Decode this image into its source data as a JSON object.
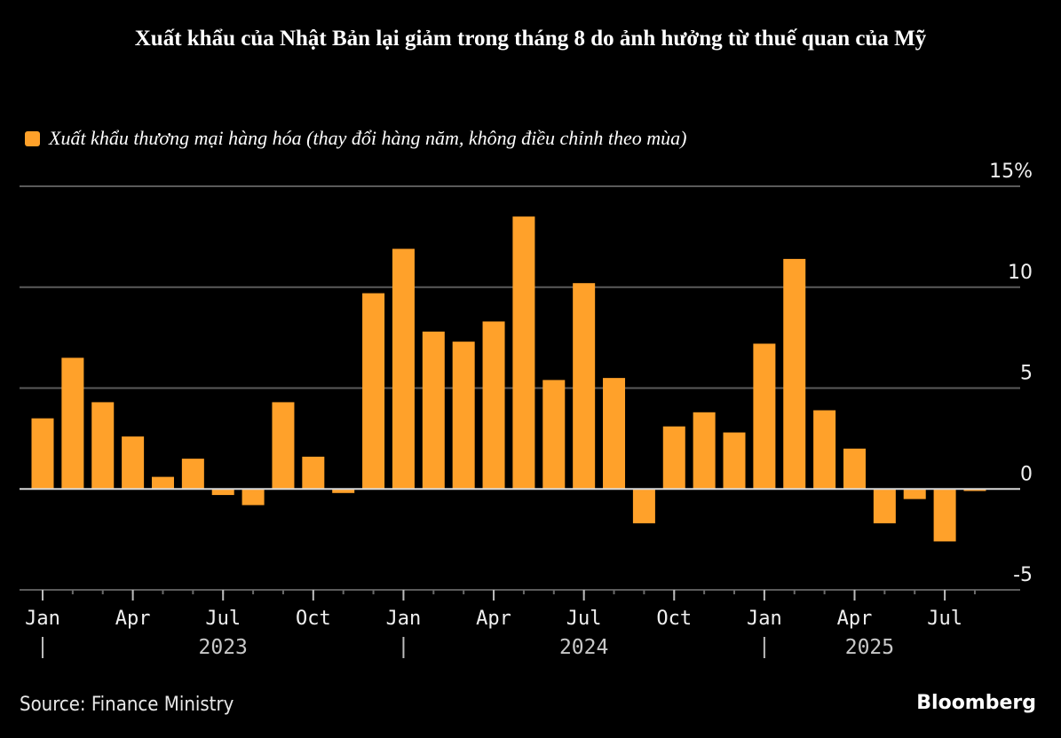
{
  "title": "Xuất khẩu của Nhật Bản lại giảm trong tháng 8 do ảnh hưởng từ thuế quan của Mỹ",
  "source": "Source: Finance Ministry",
  "brand": "Bloomberg",
  "chart_data": {
    "type": "bar",
    "title": "Xuất khẩu của Nhật Bản lại giảm trong tháng 8 do ảnh hưởng từ thuế quan của Mỹ",
    "xlabel": "",
    "ylabel": "",
    "ylim": [
      -5,
      15
    ],
    "yticks": [
      -5,
      0,
      5,
      10,
      15
    ],
    "ytick_labels": [
      "-5",
      "0",
      "5",
      "10",
      "15%"
    ],
    "grid": true,
    "legend_position": "top-left",
    "bar_color": "#ffa12a",
    "categories": [
      "2023-01",
      "2023-02",
      "2023-03",
      "2023-04",
      "2023-05",
      "2023-06",
      "2023-07",
      "2023-08",
      "2023-09",
      "2023-10",
      "2023-11",
      "2023-12",
      "2024-01",
      "2024-02",
      "2024-03",
      "2024-04",
      "2024-05",
      "2024-06",
      "2024-07",
      "2024-08",
      "2024-09",
      "2024-10",
      "2024-11",
      "2024-12",
      "2025-01",
      "2025-02",
      "2025-03",
      "2025-04",
      "2025-05",
      "2025-06",
      "2025-07",
      "2025-08"
    ],
    "series": [
      {
        "name": "Xuất khẩu thương mại hàng hóa (thay đổi hàng năm, không điều chỉnh theo mùa)",
        "values": [
          3.5,
          6.5,
          4.3,
          2.6,
          0.6,
          1.5,
          -0.3,
          -0.8,
          4.3,
          1.6,
          -0.2,
          9.7,
          11.9,
          7.8,
          7.3,
          8.3,
          13.5,
          5.4,
          10.2,
          5.5,
          -1.7,
          3.1,
          3.8,
          2.8,
          7.2,
          11.4,
          3.9,
          2.0,
          -1.7,
          -0.5,
          -2.6,
          -0.1
        ]
      }
    ],
    "xtick_labels": [
      {
        "index": 0,
        "label": "Jan"
      },
      {
        "index": 3,
        "label": "Apr"
      },
      {
        "index": 6,
        "label": "Jul"
      },
      {
        "index": 9,
        "label": "Oct"
      },
      {
        "index": 12,
        "label": "Jan"
      },
      {
        "index": 15,
        "label": "Apr"
      },
      {
        "index": 18,
        "label": "Jul"
      },
      {
        "index": 21,
        "label": "Oct"
      },
      {
        "index": 24,
        "label": "Jan"
      },
      {
        "index": 27,
        "label": "Apr"
      },
      {
        "index": 30,
        "label": "Jul"
      }
    ],
    "year_labels": [
      {
        "center_index": 6,
        "label": "2023"
      },
      {
        "center_index": 18,
        "label": "2024"
      },
      {
        "center_index": 27.5,
        "label": "2025"
      }
    ],
    "year_separators": [
      0,
      12,
      24
    ]
  }
}
